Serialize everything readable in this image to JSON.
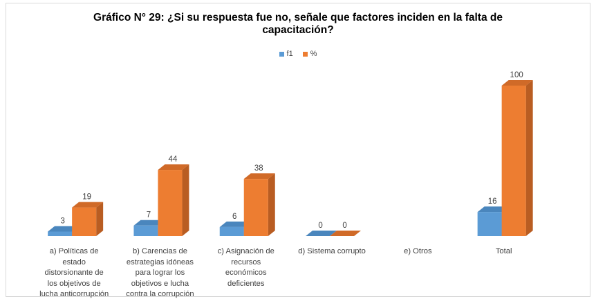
{
  "chart_data": {
    "type": "bar",
    "title_lines": [
      "Gráfico N° 29: ¿Si su respuesta fue no, señale que factores inciden en la falta de",
      "capacitación?"
    ],
    "categories": [
      [
        "a) Políticas de",
        "estado",
        "distorsionante de",
        "los objetivos de",
        "lucha anticorrupción"
      ],
      [
        "b) Carencias de",
        "estrategias idóneas",
        "para lograr los",
        "objetivos e lucha",
        "contra la corrupción"
      ],
      [
        "c) Asignación de",
        "recursos",
        "económicos",
        "deficientes"
      ],
      [
        "d) Sistema corrupto"
      ],
      [
        "e) Otros"
      ],
      [
        "Total"
      ]
    ],
    "series": [
      {
        "name": "f1",
        "values": [
          3,
          7,
          6,
          0,
          null,
          16
        ],
        "labels": [
          "3",
          "7",
          "6",
          "0",
          "",
          "16"
        ],
        "color": "#5b9bd5"
      },
      {
        "name": "%",
        "values": [
          19,
          44,
          38,
          0,
          null,
          100
        ],
        "labels": [
          "19",
          "44",
          "38",
          "0",
          "",
          "100"
        ],
        "color": "#ed7d31"
      }
    ],
    "ylim": [
      0,
      100
    ],
    "grid": false,
    "legend_position": "top",
    "style": "3d-column"
  }
}
